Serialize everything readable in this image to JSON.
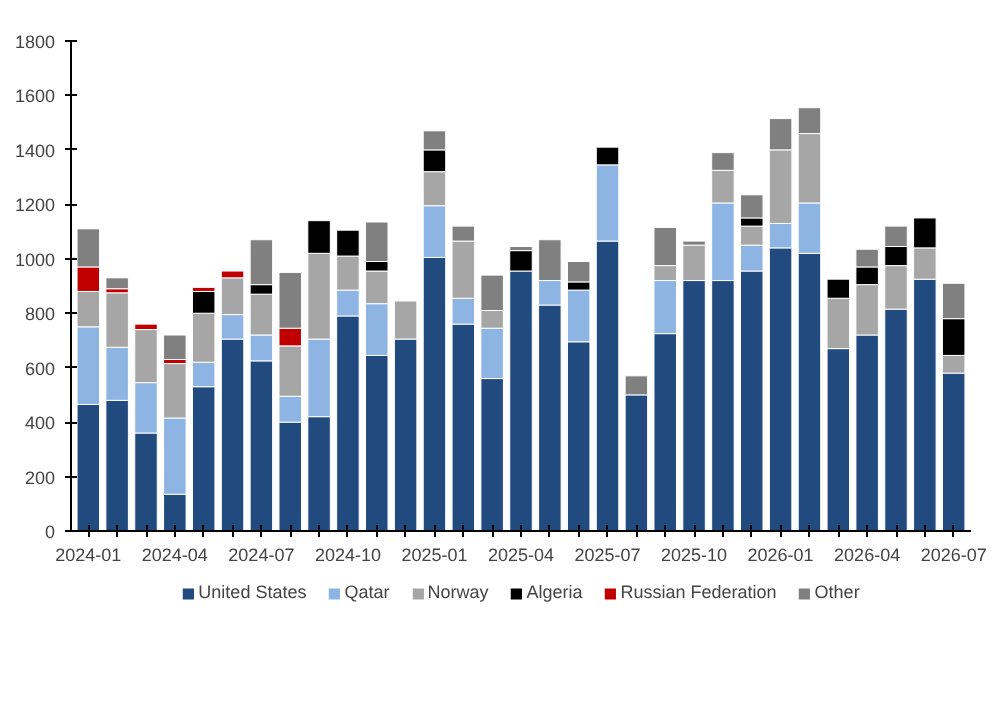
{
  "chart_data": {
    "type": "bar",
    "stacked": true,
    "categories": [
      "2024-01",
      null,
      null,
      "2024-04",
      null,
      null,
      "2024-07",
      null,
      null,
      "2024-10",
      null,
      null,
      "2025-01",
      null,
      null,
      "2025-04",
      null,
      null,
      "2025-07",
      null,
      null,
      "2025-10",
      null,
      null,
      "2026-01",
      null,
      null,
      "2026-04",
      null,
      null,
      "2026-07"
    ],
    "series": [
      {
        "name": "United States",
        "color": "#214a7f",
        "values": [
          465,
          480,
          360,
          135,
          530,
          705,
          625,
          400,
          420,
          790,
          645,
          705,
          1005,
          760,
          560,
          955,
          830,
          695,
          1065,
          500,
          725,
          920,
          920,
          955,
          1040,
          1020,
          670,
          720,
          815,
          925,
          580
        ]
      },
      {
        "name": "Qatar",
        "color": "#8db4e2",
        "values": [
          285,
          195,
          185,
          280,
          90,
          90,
          95,
          95,
          285,
          95,
          190,
          null,
          190,
          95,
          185,
          null,
          90,
          190,
          280,
          null,
          195,
          null,
          285,
          95,
          90,
          185,
          null,
          null,
          null,
          null,
          null
        ]
      },
      {
        "name": "Norway",
        "color": "#a6a6a6",
        "values": [
          130,
          200,
          195,
          200,
          180,
          135,
          150,
          185,
          315,
          125,
          120,
          140,
          125,
          210,
          65,
          null,
          null,
          null,
          null,
          null,
          55,
          130,
          120,
          70,
          270,
          255,
          185,
          185,
          160,
          115,
          65
        ]
      },
      {
        "name": "Algeria",
        "color": "#000000",
        "values": [
          null,
          null,
          null,
          null,
          80,
          null,
          35,
          null,
          120,
          95,
          35,
          null,
          80,
          null,
          null,
          75,
          null,
          30,
          65,
          null,
          null,
          null,
          null,
          30,
          null,
          null,
          70,
          65,
          70,
          110,
          135
        ]
      },
      {
        "name": "Russian Federation",
        "color": "#c00000",
        "values": [
          90,
          15,
          20,
          15,
          15,
          25,
          null,
          65,
          null,
          null,
          null,
          null,
          null,
          null,
          null,
          null,
          null,
          null,
          null,
          null,
          null,
          null,
          null,
          null,
          null,
          null,
          null,
          null,
          null,
          null,
          null
        ]
      },
      {
        "name": "Other",
        "color": "#808080",
        "values": [
          140,
          40,
          null,
          90,
          null,
          null,
          165,
          205,
          null,
          null,
          145,
          null,
          70,
          55,
          130,
          15,
          150,
          75,
          null,
          70,
          140,
          15,
          65,
          85,
          115,
          95,
          null,
          65,
          75,
          null,
          130
        ]
      }
    ],
    "ylim": [
      0,
      1800
    ],
    "yticks": [
      0,
      200,
      400,
      600,
      800,
      1000,
      1200,
      1400,
      1600,
      1800
    ],
    "grid": false,
    "legend": "bottom"
  }
}
